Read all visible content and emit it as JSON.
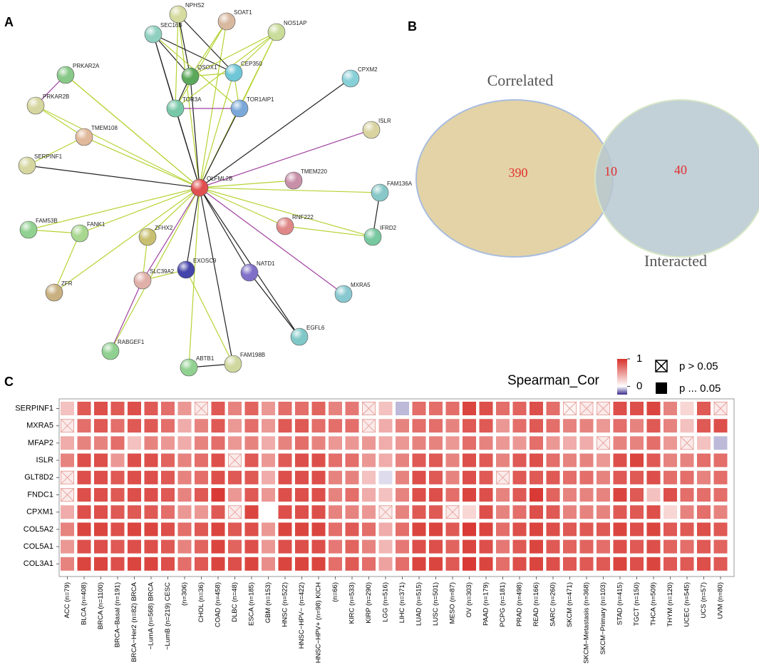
{
  "panel_labels": [
    "A",
    "B",
    "C"
  ],
  "network": {
    "nodes": [
      "NPHS2",
      "SOAT1",
      "SEC16B",
      "NOS1AP",
      "CEP350",
      "QSOX1",
      "PRKAR2A",
      "CPXM2",
      "PRKAR2B",
      "TOR3A",
      "TOR1AIP1",
      "ISLR",
      "TMEM108",
      "SERPINF1",
      "OLFML2B",
      "TMEM220",
      "FAM136A",
      "RNF222",
      "FAM53B",
      "FANK1",
      "IFRD2",
      "ZFHX2",
      "EXOSC9",
      "SLC39A2",
      "NATD1",
      "MXRA5",
      "ZFR",
      "EGFL6",
      "RABGEF1",
      "FAM198B",
      "ABTB1"
    ]
  },
  "venn": {
    "sets": [
      "Correlated",
      "Interacted"
    ],
    "counts": [
      390,
      10,
      40
    ]
  },
  "chart_data": {
    "type": "heatmap",
    "title": "Spearman_Cor",
    "rows": [
      "SERPINF1",
      "MXRA5",
      "MFAP2",
      "ISLR",
      "GLT8D2",
      "FNDC1",
      "CPXM1",
      "COL5A2",
      "COL5A1",
      "COL3A1"
    ],
    "columns": [
      "ACC (n=79)",
      "BLCA (n=408)",
      "BRCA (n=1100)",
      "BRCA−Basal (n=191)",
      "BRCA−Her2 (n=82) BRCA",
      "−LumA (n=568) BRCA",
      "−LumB (n=219) CESC",
      "(n=306)",
      "CHOL (n=36)",
      "COAD (n=458)",
      "DLBC (n=48)",
      "ESCA (n=185)",
      "GBM (n=153)",
      "HNSC (n=522)",
      "HNSC−HPV− (n=422)",
      "HNSC−HPV+ (n=98) KICH",
      "(n=66)",
      "KIRC (n=533)",
      "KIRP (n=290)",
      "LGG (n=516)",
      "LIHC (n=371)",
      "LUAD (n=515)",
      "LUSC (n=501)",
      "MESO (n=87)",
      "OV (n=303)",
      "PAAD (n=179)",
      "PCPG (n=181)",
      "PRAD (n=498)",
      "READ (n=166)",
      "SARC (n=260)",
      "SKCM (n=471)",
      "SKCM−Metastasis (n=368)",
      "SKCM−Primary (n=103)",
      "STAD (n=415)",
      "TGCT (n=150)",
      "THCA (n=509)",
      "THYM (n=120)",
      "UCEC (n=545)",
      "UCS (n=57)",
      "UVM (n=80)"
    ],
    "values": [
      [
        0.3,
        0.8,
        0.85,
        0.8,
        0.85,
        0.8,
        0.7,
        0.5,
        0.1,
        0.8,
        0.6,
        0.75,
        0.5,
        0.7,
        0.7,
        0.75,
        0.6,
        0.65,
        0.1,
        0.3,
        -0.1,
        0.7,
        0.7,
        0.7,
        0.9,
        0.85,
        0.7,
        0.75,
        0.85,
        0.7,
        0.05,
        0.1,
        0.1,
        0.85,
        0.85,
        0.9,
        0.6,
        0.2,
        0.8,
        0.1
      ],
      [
        0.1,
        0.7,
        0.8,
        0.7,
        0.8,
        0.8,
        0.7,
        0.4,
        0.6,
        0.8,
        0.5,
        0.7,
        0.5,
        0.8,
        0.8,
        0.7,
        0.7,
        0.7,
        0.1,
        0.4,
        0.6,
        0.7,
        0.7,
        0.6,
        0.8,
        0.8,
        0.5,
        0.7,
        0.8,
        0.7,
        0.6,
        0.6,
        0.5,
        0.7,
        0.6,
        0.8,
        0.6,
        0.3,
        0.8,
        0.85
      ],
      [
        0.4,
        0.6,
        0.6,
        0.7,
        0.3,
        0.6,
        0.5,
        0.4,
        0.6,
        0.7,
        0.5,
        0.6,
        0.4,
        0.6,
        0.7,
        0.6,
        0.5,
        0.5,
        0.5,
        0.4,
        0.5,
        0.6,
        0.6,
        0.5,
        0.7,
        0.6,
        0.5,
        0.5,
        0.7,
        0.5,
        0.4,
        0.4,
        0.1,
        0.6,
        0.6,
        0.7,
        0.5,
        0.1,
        0.3,
        -0.1
      ],
      [
        0.6,
        0.85,
        0.85,
        0.5,
        0.85,
        0.85,
        0.75,
        0.6,
        0.7,
        0.85,
        0.1,
        0.8,
        0.5,
        0.8,
        0.85,
        0.85,
        0.7,
        0.7,
        0.5,
        0.4,
        0.6,
        0.8,
        0.8,
        0.6,
        0.85,
        0.8,
        0.6,
        0.8,
        0.85,
        0.7,
        0.6,
        0.6,
        0.5,
        0.85,
        0.9,
        0.8,
        0.6,
        0.6,
        0.7,
        0.7
      ],
      [
        0.1,
        0.85,
        0.85,
        0.8,
        0.85,
        0.85,
        0.8,
        0.6,
        0.7,
        0.85,
        0.8,
        0.8,
        0.4,
        0.85,
        0.85,
        0.85,
        0.6,
        0.6,
        0.3,
        -0.05,
        0.6,
        0.85,
        0.8,
        0.6,
        0.85,
        0.8,
        0.1,
        0.8,
        0.8,
        0.8,
        0.7,
        0.7,
        0.6,
        0.8,
        0.8,
        0.85,
        0.7,
        0.7,
        0.6,
        0.7
      ],
      [
        0.1,
        0.85,
        0.85,
        0.8,
        0.85,
        0.85,
        0.8,
        0.6,
        0.8,
        0.95,
        0.5,
        0.8,
        0.5,
        0.85,
        0.85,
        0.85,
        0.6,
        0.7,
        0.4,
        0.3,
        0.6,
        0.85,
        0.85,
        0.7,
        0.9,
        0.85,
        0.6,
        0.8,
        0.95,
        0.75,
        0.6,
        0.6,
        0.6,
        0.9,
        0.8,
        0.3,
        0.85,
        0.7,
        0.7,
        0.7
      ],
      [
        0.4,
        0.85,
        0.85,
        0.8,
        0.8,
        0.8,
        0.7,
        0.5,
        0.5,
        0.8,
        0.1,
        0.9,
        0,
        0.85,
        0.85,
        0.85,
        0.6,
        0.6,
        0.5,
        0.1,
        0.6,
        0.8,
        0.8,
        0.1,
        0.2,
        0.85,
        0.6,
        0.7,
        0.85,
        0.8,
        0.6,
        0.6,
        0.6,
        0.8,
        0.8,
        0.85,
        0.2,
        0.6,
        0.7,
        0.6
      ],
      [
        0.6,
        0.9,
        0.9,
        0.85,
        0.9,
        0.9,
        0.85,
        0.7,
        0.8,
        0.9,
        0.8,
        0.85,
        0.5,
        0.9,
        0.9,
        0.9,
        0.7,
        0.8,
        0.7,
        0.4,
        0.7,
        0.9,
        0.9,
        0.8,
        0.95,
        0.9,
        0.7,
        0.85,
        0.9,
        0.85,
        0.8,
        0.8,
        0.8,
        0.9,
        0.85,
        0.9,
        0.8,
        0.8,
        0.85,
        0.8
      ],
      [
        0.5,
        0.85,
        0.85,
        0.8,
        0.85,
        0.85,
        0.8,
        0.6,
        0.75,
        0.9,
        0.75,
        0.85,
        0.5,
        0.85,
        0.85,
        0.85,
        0.65,
        0.75,
        0.6,
        0.35,
        0.65,
        0.85,
        0.85,
        0.75,
        0.9,
        0.85,
        0.65,
        0.8,
        0.9,
        0.8,
        0.75,
        0.75,
        0.7,
        0.85,
        0.8,
        0.85,
        0.75,
        0.7,
        0.8,
        0.75
      ],
      [
        0.6,
        0.9,
        0.9,
        0.85,
        0.9,
        0.9,
        0.85,
        0.7,
        0.8,
        0.9,
        0.85,
        0.9,
        0.55,
        0.9,
        0.9,
        0.9,
        0.7,
        0.8,
        0.7,
        0.45,
        0.7,
        0.9,
        0.9,
        0.8,
        0.95,
        0.9,
        0.7,
        0.85,
        0.9,
        0.85,
        0.8,
        0.8,
        0.8,
        0.9,
        0.85,
        0.9,
        0.8,
        0.8,
        0.85,
        0.8
      ]
    ],
    "crossed": [
      [
        0,
        8
      ],
      [
        0,
        18
      ],
      [
        0,
        30
      ],
      [
        0,
        31
      ],
      [
        0,
        32
      ],
      [
        0,
        39
      ],
      [
        1,
        0
      ],
      [
        1,
        18
      ],
      [
        2,
        32
      ],
      [
        2,
        37
      ],
      [
        3,
        10
      ],
      [
        4,
        0
      ],
      [
        4,
        26
      ],
      [
        5,
        0
      ],
      [
        6,
        10
      ],
      [
        6,
        19
      ],
      [
        6,
        23
      ]
    ],
    "clim": [
      -0.3,
      1
    ],
    "cticks": [
      1,
      0
    ],
    "high_color": "#d7302a",
    "low_color": "#3a2d8c",
    "legend": [
      "p > 0.05",
      "p ... 0.05"
    ]
  }
}
